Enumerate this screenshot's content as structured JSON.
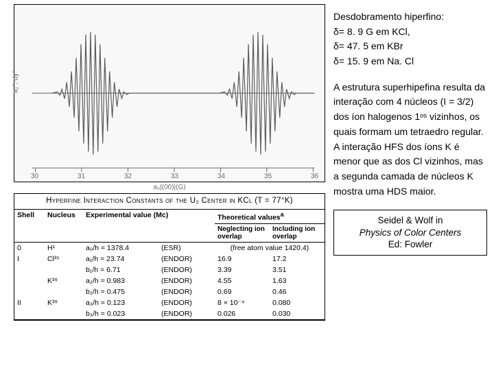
{
  "chart": {
    "type": "line",
    "background_color": "#f8f8f8",
    "axis_color": "#6b6b6b",
    "line_color": "#5a5a5a",
    "line_width": 1.2,
    "xlim": [
      30,
      36
    ],
    "xticks": [
      30,
      31,
      32,
      33,
      34,
      35,
      36
    ],
    "xlabel": "a₀|(00)|(G)",
    "ylabel": "a₂″, dy″",
    "burst_centers_x": [
      31.15,
      34.85
    ],
    "burst_half_width_x": 0.75,
    "burst_amplitude_rel": 0.82,
    "burst_lobes": 11
  },
  "table": {
    "caption": "Hyperfine Interaction Constants of the U₂ Center in KCl (T = 77°K)",
    "headers": {
      "shell": "Shell",
      "nucleus": "Nucleus",
      "experimental": "Experimental value (Mc)",
      "theoretical": "Theoretical values",
      "neglecting": "Neglecting ion overlap",
      "including": "Including ion overlap"
    },
    "theoretical_note": "a",
    "free_atom_note": "(free atom value 1420.4)",
    "rows": [
      {
        "shell": "0",
        "nucleus": "H¹",
        "label": "a₀/h =",
        "exp": "1378.4",
        "method": "(ESR)",
        "neg": "",
        "inc": ""
      },
      {
        "shell": "I",
        "nucleus": "Cl³⁵",
        "label": "a₁/h =",
        "exp": "23.74",
        "method": "(ENDOR)",
        "neg": "16.9",
        "inc": "17.2"
      },
      {
        "shell": "",
        "nucleus": "",
        "label": "b₁/h =",
        "exp": "6.71",
        "method": "(ENDOR)",
        "neg": "3.39",
        "inc": "3.51"
      },
      {
        "shell": "",
        "nucleus": "K³⁹",
        "label": "a₂/h =",
        "exp": "0.983",
        "method": "(ENDOR)",
        "neg": "4.55",
        "inc": "1.63"
      },
      {
        "shell": "",
        "nucleus": "",
        "label": "b₂/h =",
        "exp": "0.475",
        "method": "(ENDOR)",
        "neg": "0.69",
        "inc": "0.46"
      },
      {
        "shell": "II",
        "nucleus": "K³⁹",
        "label": "a₃/h =",
        "exp": "0.123",
        "method": "(ENDOR)",
        "neg": "8 × 10⁻⁴",
        "inc": "0.080"
      },
      {
        "shell": "",
        "nucleus": "",
        "label": "b₃/h =",
        "exp": "0.023",
        "method": "(ENDOR)",
        "neg": "0.026",
        "inc": "0.030"
      }
    ]
  },
  "text": {
    "hf_title": "Desdobramento hiperfino:",
    "hf_kcl": "δ= 8. 9 G em KCl,",
    "hf_kbr": "δ= 47. 5 em KBr",
    "hf_nacl": "δ= 15. 9 em Na. Cl",
    "para": "A estrutura superhipefina resulta da interação com 4 núcleos (I = 3/2) dos íon halogenos 1ᵒˢ vizinhos, os quais formam um tetraedro regular. A interação HFS dos íons K é menor que as dos Cl vizinhos, mas a segunda camada de núcleos K mostra uma HDS maior.",
    "cite_line1": "Seidel & Wolf in",
    "cite_line2": "Physics of Color Centers",
    "cite_line3": "Ed: Fowler"
  }
}
